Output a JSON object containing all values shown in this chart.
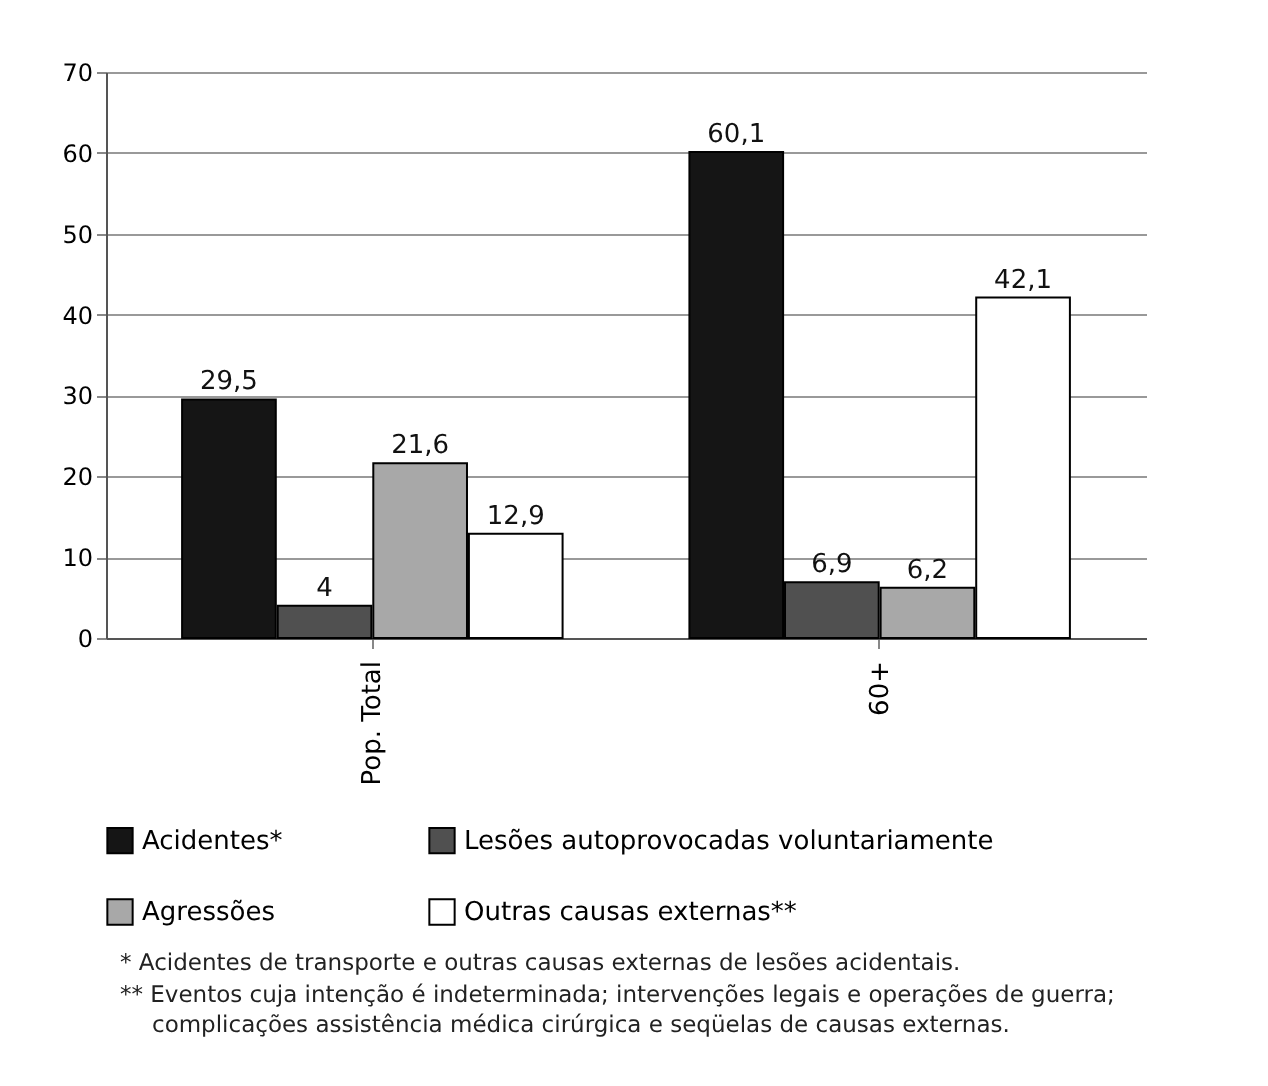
{
  "chart_data": {
    "type": "bar",
    "categories": [
      "Pop. Total",
      "60+"
    ],
    "series": [
      {
        "name": "Acidentes*",
        "color": "#151515",
        "values": [
          29.5,
          60.1
        ],
        "value_labels": [
          "29,5",
          "60,1"
        ]
      },
      {
        "name": "Lesões autoprovocadas voluntariamente",
        "color": "#505050",
        "values": [
          4,
          6.9
        ],
        "value_labels": [
          "4",
          "6,9"
        ]
      },
      {
        "name": "Agressões",
        "color": "#a8a8a8",
        "values": [
          21.6,
          6.2
        ],
        "value_labels": [
          "21,6",
          "6,2"
        ]
      },
      {
        "name": "Outras causas externas**",
        "color": "#ffffff",
        "values": [
          12.9,
          42.1
        ],
        "value_labels": [
          "12,9",
          "42,1"
        ]
      }
    ],
    "ylim": [
      0,
      70
    ],
    "yticks": [
      0,
      10,
      20,
      30,
      40,
      50,
      60,
      70
    ],
    "grid": "y",
    "legend": "bottom",
    "annotations": [
      "* Acidentes de transporte e outras causas externas de lesões acidentais.",
      "** Eventos cuja intenção é indeterminada; intervenções legais e operações de guerra; complicações assistência médica cirúrgica e seqüelas de causas externas."
    ]
  }
}
